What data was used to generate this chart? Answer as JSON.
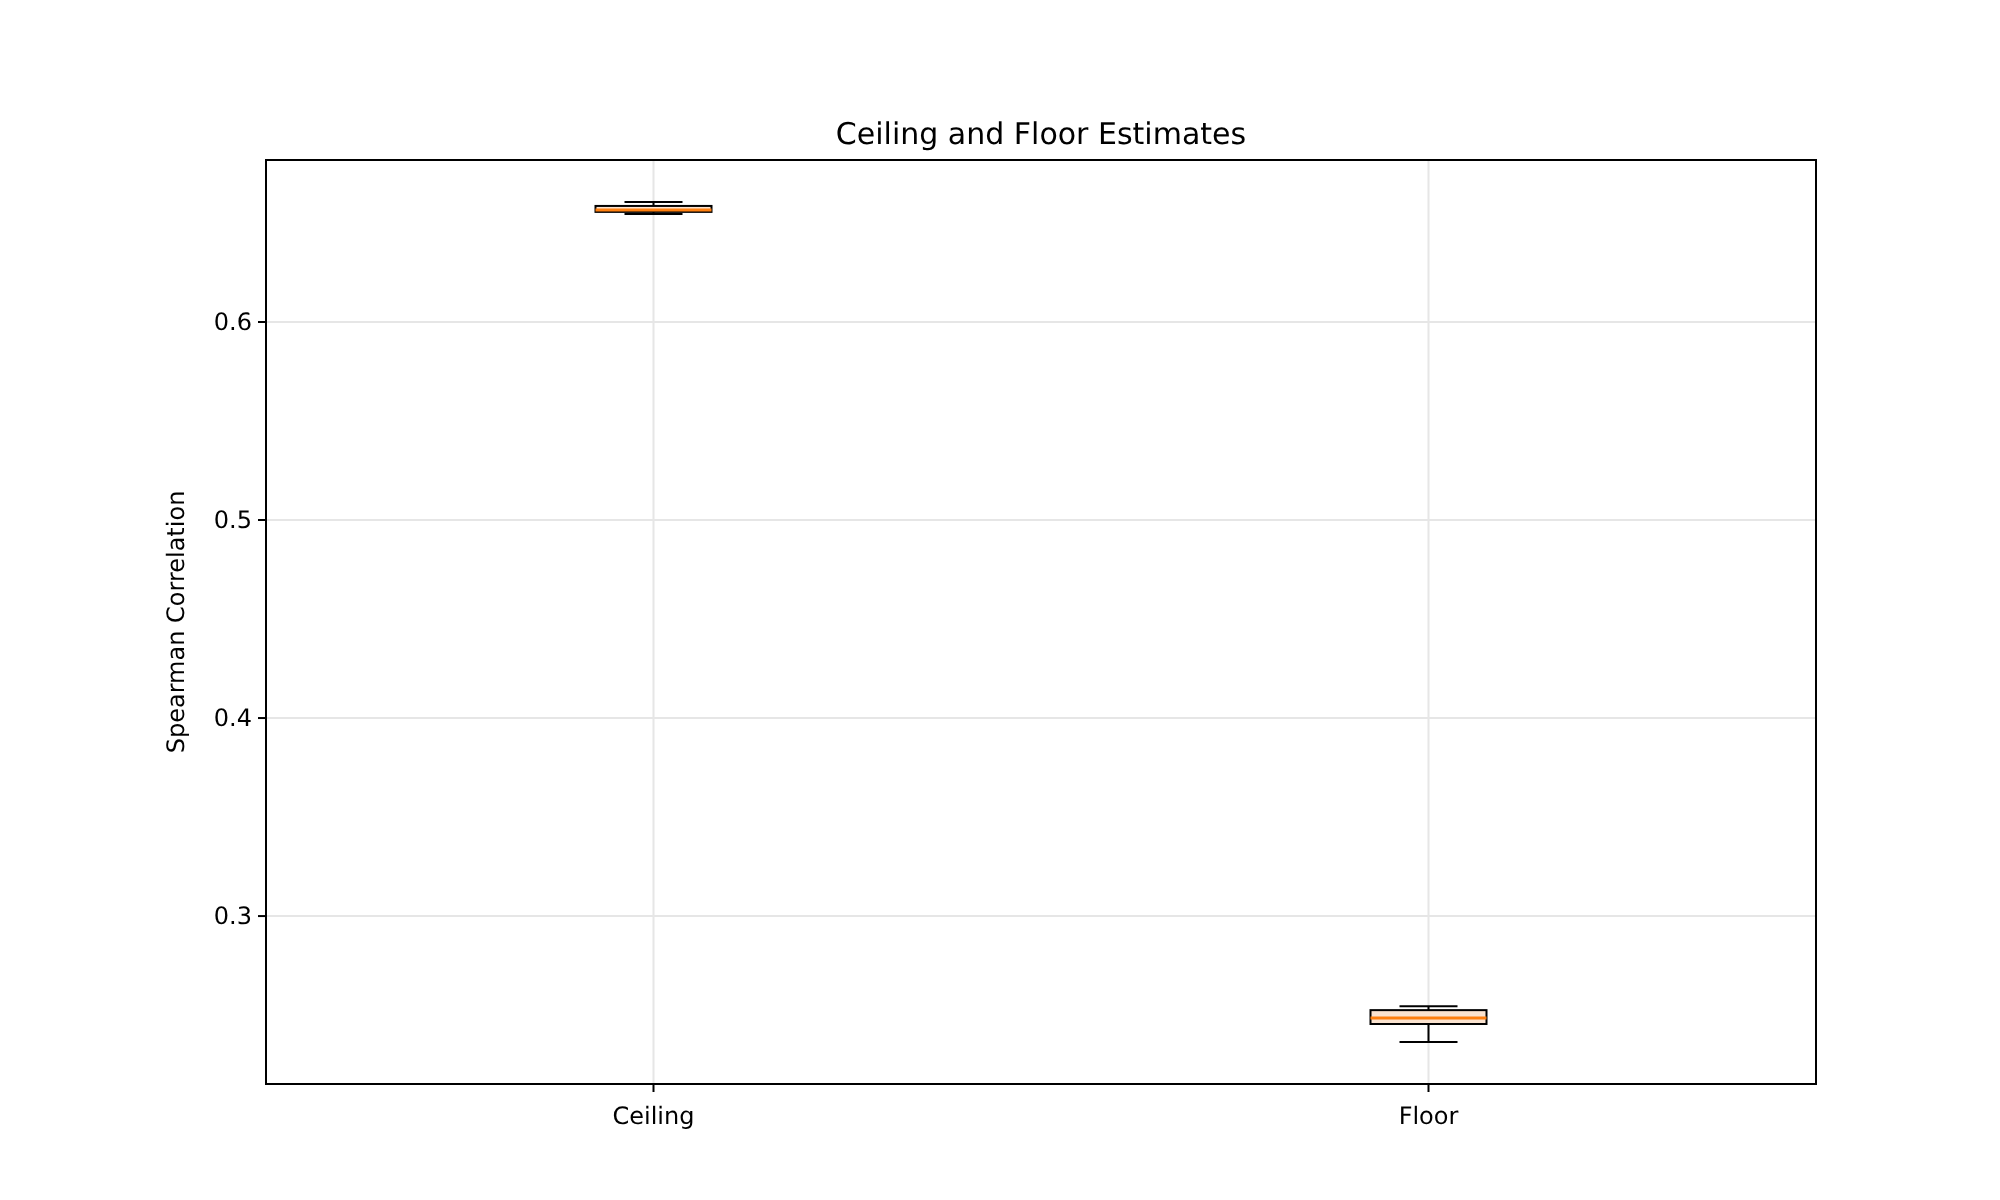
{
  "chart_data": {
    "type": "box",
    "title": "Ceiling and Floor Estimates",
    "ylabel": "Spearman Correlation",
    "categories": [
      "Ceiling",
      "Floor"
    ],
    "boxes": [
      {
        "low": 0.6545,
        "q1": 0.6556,
        "median": 0.6566,
        "q3": 0.6586,
        "high": 0.6606
      },
      {
        "low": 0.2364,
        "q1": 0.2455,
        "median": 0.2485,
        "q3": 0.2525,
        "high": 0.2545
      }
    ],
    "color": "#fbe3cf",
    "ylim": [
      0.2152,
      0.6818
    ],
    "yticks": [
      0.3,
      0.4,
      0.5,
      0.6
    ],
    "grid": true
  }
}
